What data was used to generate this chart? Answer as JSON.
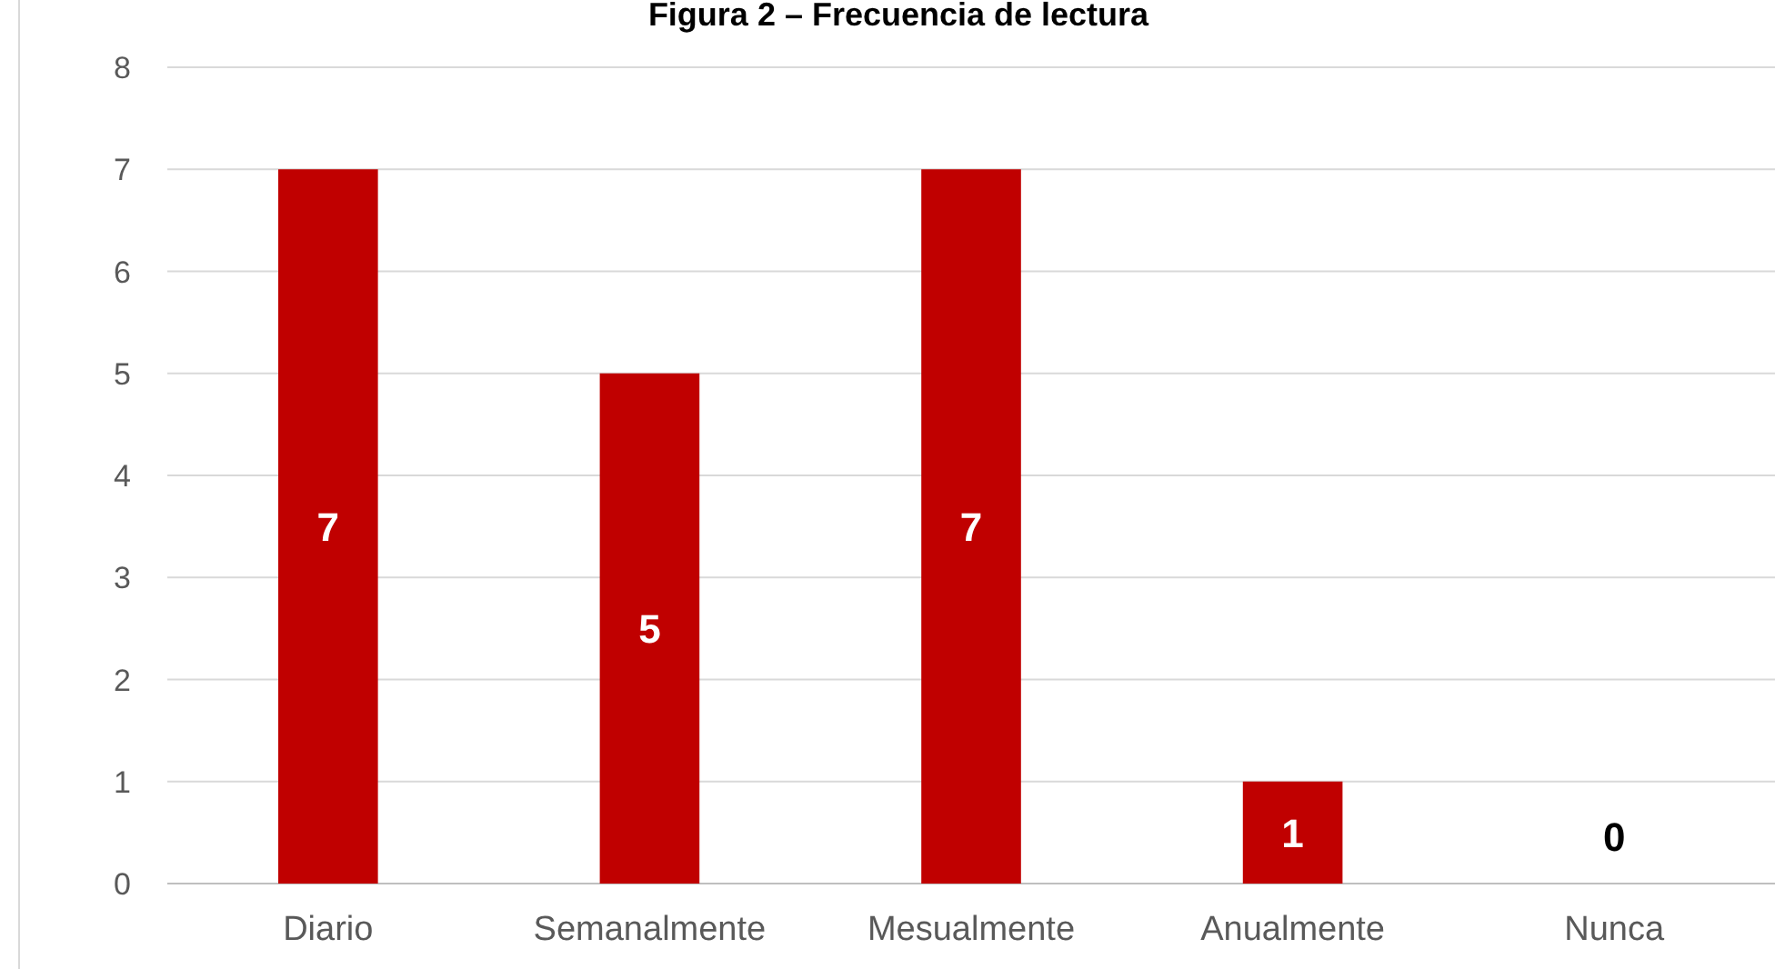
{
  "chart_data": {
    "type": "bar",
    "title": "Figura 2 – Frecuencia de lectura",
    "categories": [
      "Diario",
      "Semanalmente",
      "Mesualmente",
      "Anualmente",
      "Nunca"
    ],
    "values": [
      7,
      5,
      7,
      1,
      0
    ],
    "color": "#c00000",
    "ylim": [
      0,
      8
    ],
    "yticks": [
      0,
      1,
      2,
      3,
      4,
      5,
      6,
      7,
      8
    ],
    "grid": "y",
    "data_labels": true
  }
}
